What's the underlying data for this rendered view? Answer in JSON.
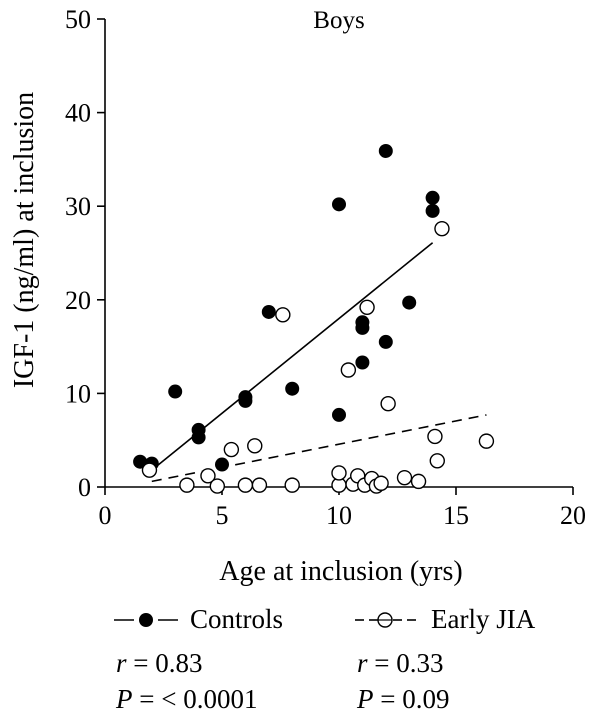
{
  "chart_data": {
    "type": "scatter",
    "title": "Boys",
    "xlabel": "Age at inclusion (yrs)",
    "ylabel": "IGF-1 (ng/ml) at inclusion",
    "xlim": [
      0,
      20
    ],
    "ylim": [
      0,
      50
    ],
    "xticks": [
      "0",
      "5",
      "10",
      "15",
      "20"
    ],
    "yticks": [
      "0",
      "10",
      "20",
      "30",
      "40",
      "50"
    ],
    "grid": false,
    "legend_position": "bottom",
    "series": [
      {
        "name": "Controls",
        "marker": "filled-circle",
        "color": "#000000",
        "points": [
          [
            1.5,
            2.7
          ],
          [
            2.0,
            2.5
          ],
          [
            3.0,
            10.2
          ],
          [
            4.0,
            5.3
          ],
          [
            4.0,
            6.1
          ],
          [
            5.0,
            2.4
          ],
          [
            6.0,
            9.2
          ],
          [
            6.0,
            9.6
          ],
          [
            7.0,
            18.7
          ],
          [
            8.0,
            10.5
          ],
          [
            10.0,
            30.2
          ],
          [
            10.0,
            7.7
          ],
          [
            11.0,
            17.0
          ],
          [
            11.0,
            17.6
          ],
          [
            11.0,
            13.3
          ],
          [
            12.0,
            35.9
          ],
          [
            12.0,
            15.5
          ],
          [
            13.0,
            19.7
          ],
          [
            14.0,
            30.9
          ],
          [
            14.0,
            29.5
          ]
        ],
        "regression": {
          "line": "solid",
          "x": [
            1.9,
            14.0
          ],
          "y": [
            1.6,
            26.1
          ]
        },
        "stats": {
          "r_label": "r",
          "r_value": "= 0.83",
          "p_label": "P",
          "p_value": "= < 0.0001"
        }
      },
      {
        "name": "Early JIA",
        "marker": "open-circle",
        "color": "#000000",
        "points": [
          [
            1.9,
            1.8
          ],
          [
            3.5,
            0.2
          ],
          [
            4.4,
            1.2
          ],
          [
            4.8,
            0.1
          ],
          [
            5.4,
            4.0
          ],
          [
            6.0,
            0.2
          ],
          [
            6.4,
            4.4
          ],
          [
            6.6,
            0.2
          ],
          [
            7.6,
            18.4
          ],
          [
            8.0,
            0.2
          ],
          [
            10.0,
            0.2
          ],
          [
            10.0,
            1.5
          ],
          [
            10.4,
            12.5
          ],
          [
            10.6,
            0.3
          ],
          [
            10.8,
            1.2
          ],
          [
            11.1,
            0.2
          ],
          [
            11.2,
            19.2
          ],
          [
            11.4,
            0.9
          ],
          [
            11.6,
            0.1
          ],
          [
            11.8,
            0.4
          ],
          [
            12.1,
            8.9
          ],
          [
            12.8,
            1.0
          ],
          [
            13.4,
            0.6
          ],
          [
            14.1,
            5.4
          ],
          [
            14.2,
            2.8
          ],
          [
            14.4,
            27.6
          ],
          [
            16.3,
            4.9
          ]
        ],
        "regression": {
          "line": "dashed",
          "x": [
            2.0,
            16.3
          ],
          "y": [
            0.6,
            7.7
          ]
        },
        "stats": {
          "r_label": "r",
          "r_value": "= 0.33",
          "p_label": "P",
          "p_value": "= 0.09"
        }
      }
    ]
  }
}
